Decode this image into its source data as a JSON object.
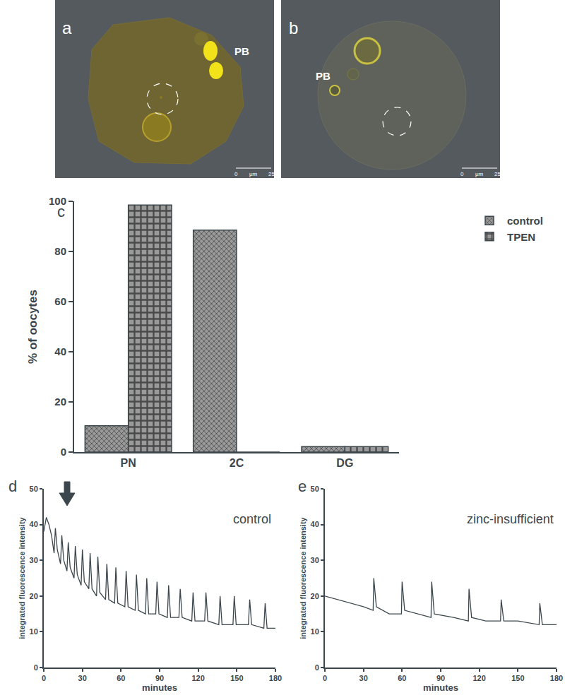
{
  "chart_data": [
    {
      "panel": "c",
      "type": "bar",
      "categories": [
        "PN",
        "2C",
        "DG"
      ],
      "series": [
        {
          "name": "control",
          "color": "#9a9a9a",
          "marker": "crosshatch",
          "values": [
            10.5,
            88.5,
            2.2
          ]
        },
        {
          "name": "TPEN",
          "color": "#9a9a9a",
          "marker": "checker",
          "values": [
            98.5,
            0,
            2.2
          ]
        }
      ],
      "y_label": "% of oocytes",
      "ylim": [
        0,
        100
      ],
      "yticks": [
        0,
        20,
        40,
        60,
        80,
        100
      ],
      "legend": "right"
    },
    {
      "panel": "d",
      "type": "line",
      "annotation": "control",
      "color": "#3c474d",
      "x": [
        0,
        2,
        4,
        6,
        8,
        9,
        10.5,
        13,
        14,
        15.5,
        18,
        19,
        20.5,
        23.5,
        24.5,
        26,
        29,
        30,
        31.5,
        35,
        36,
        37.5,
        41,
        42,
        43.5,
        48,
        49,
        50.5,
        55,
        56,
        57.5,
        63,
        64,
        65.5,
        71,
        72,
        73.5,
        79,
        80,
        81.5,
        87,
        88,
        89.5,
        96,
        97,
        98.5,
        105,
        106,
        107.5,
        115,
        116,
        117.5,
        125,
        126,
        127.5,
        136,
        137,
        138.5,
        147,
        148,
        149.5,
        159,
        160,
        161.5,
        171,
        172,
        173.5,
        180
      ],
      "values": [
        38,
        42,
        40,
        37,
        32,
        39,
        33,
        29,
        37,
        30,
        27,
        35,
        28,
        25,
        34,
        26,
        23,
        33,
        24,
        22,
        32,
        22,
        20,
        31,
        21,
        19,
        29,
        19,
        18,
        28,
        18,
        17,
        27,
        17,
        16,
        26,
        16,
        15,
        25,
        15,
        15,
        24,
        15,
        14,
        23,
        14,
        14,
        22,
        14,
        13,
        21,
        13,
        13,
        21,
        13,
        12,
        20,
        12,
        12,
        20,
        12,
        12,
        19,
        12,
        11,
        18,
        11,
        11
      ],
      "x_label": "minutes",
      "y_label": "integrated fluorescence intensity",
      "xlim": [
        0,
        180
      ],
      "xticks": [
        0,
        30,
        60,
        90,
        120,
        150,
        180
      ],
      "ylim": [
        0,
        50
      ],
      "yticks": [
        0,
        10,
        20,
        30,
        40,
        50
      ]
    },
    {
      "panel": "e",
      "type": "line",
      "annotation": "zinc-insufficient",
      "color": "#3c474d",
      "x": [
        0,
        10,
        20,
        30,
        37.5,
        38,
        40,
        50,
        59.5,
        60,
        62,
        72,
        82.5,
        83,
        85,
        100,
        111.5,
        112,
        114,
        125,
        136.5,
        137,
        139,
        150,
        166.5,
        167,
        169,
        180
      ],
      "values": [
        20,
        19,
        18,
        17,
        16,
        25,
        17,
        15,
        15,
        24,
        16,
        15,
        14,
        24,
        15,
        14,
        13,
        22,
        14,
        13,
        13,
        19,
        13,
        13,
        12,
        18,
        12,
        12
      ],
      "x_label": "minutes",
      "y_label": "integrated fluorescence intensity",
      "xlim": [
        0,
        180
      ],
      "xticks": [
        0,
        30,
        60,
        90,
        120,
        150,
        180
      ],
      "ylim": [
        0,
        50
      ],
      "yticks": [
        0,
        10,
        20,
        30,
        40,
        50
      ]
    }
  ],
  "images": [
    {
      "label": "a",
      "annotations": [
        "PB"
      ],
      "scale_bar": [
        "0",
        "μm",
        "25"
      ]
    },
    {
      "label": "b",
      "annotations": [
        "PB"
      ],
      "scale_bar": [
        "0",
        "μm",
        "25"
      ]
    }
  ]
}
